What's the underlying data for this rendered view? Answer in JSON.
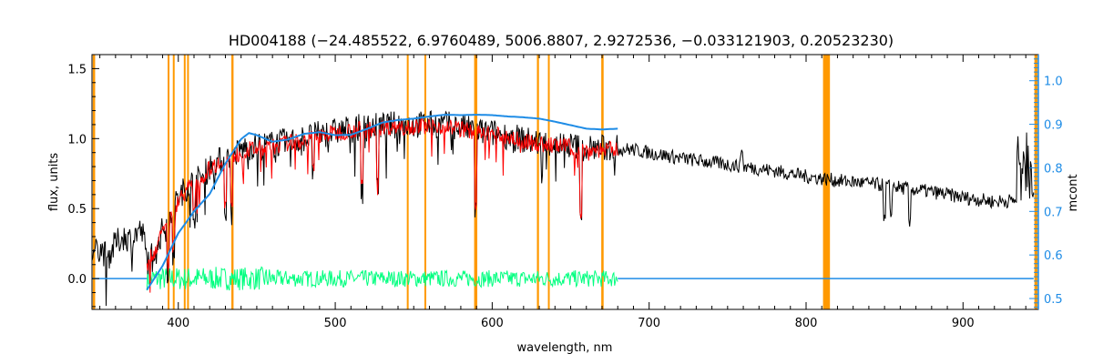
{
  "chart_data": {
    "type": "line",
    "title": "HD004188   (−24.485522, 6.9760489, 5006.8807, 2.9272536, −0.033121903, 0.20523230)",
    "xlabel": "wavelength, nm",
    "ylabel": "flux, units",
    "y2label": "mcont",
    "xlim": [
      345,
      948
    ],
    "ylim": [
      -0.22,
      1.6
    ],
    "y2lim": [
      0.475,
      1.06
    ],
    "xticks": [
      400,
      500,
      600,
      700,
      800,
      900
    ],
    "yticks": [
      0.0,
      0.5,
      1.0,
      1.5
    ],
    "yticklabels": [
      "0.0",
      "0.5",
      "1.0",
      "1.5"
    ],
    "y2ticks": [
      0.5,
      0.6,
      0.7,
      0.8,
      0.9,
      1.0
    ],
    "y2ticklabels": [
      "0.5",
      "0.6",
      "0.7",
      "0.8",
      "0.9",
      "1.0"
    ],
    "colors": {
      "observed": "#000000",
      "model": "#ff0000",
      "residual": "#00ff7f",
      "continuum": "#1e8ce6",
      "mask": "#ff9900",
      "right_axis": "#1e8ce6"
    },
    "masked_regions": [
      [
        345.5,
        347
      ],
      [
        393.2,
        393.8
      ],
      [
        396.5,
        397.2
      ],
      [
        403.5,
        404.2
      ],
      [
        405.6,
        406.3
      ],
      [
        433.8,
        435.2
      ],
      [
        545.6,
        546.3
      ],
      [
        556.8,
        557.5
      ],
      [
        588.5,
        590.5
      ],
      [
        628.5,
        629.8
      ],
      [
        635.5,
        636.3
      ],
      [
        669.5,
        671
      ],
      [
        810.8,
        815.2
      ],
      [
        945.5,
        947.5
      ]
    ],
    "series": [
      {
        "role": "observed",
        "x": [
          345,
          350,
          355,
          360,
          365,
          370,
          375,
          378,
          380,
          385,
          390,
          395,
          400,
          405,
          410,
          415,
          420,
          425,
          430,
          435,
          440,
          445,
          450,
          460,
          470,
          480,
          490,
          500,
          510,
          520,
          530,
          540,
          550,
          560,
          570,
          580,
          590,
          600,
          610,
          620,
          630,
          640,
          650,
          660,
          670,
          680,
          690,
          700,
          720,
          740,
          760,
          780,
          800,
          820,
          840,
          860,
          880,
          900,
          920,
          935,
          945
        ],
        "y": [
          0.17,
          0.22,
          0.15,
          0.25,
          0.3,
          0.28,
          0.35,
          0.3,
          0.12,
          0.22,
          0.35,
          0.45,
          0.58,
          0.65,
          0.7,
          0.72,
          0.8,
          0.84,
          0.85,
          0.88,
          0.92,
          0.94,
          0.95,
          0.96,
          0.98,
          1.0,
          1.03,
          1.05,
          1.07,
          1.08,
          1.09,
          1.1,
          1.1,
          1.1,
          1.1,
          1.08,
          1.05,
          1.04,
          1.02,
          0.99,
          0.97,
          0.96,
          0.95,
          0.93,
          0.93,
          0.93,
          0.92,
          0.9,
          0.86,
          0.83,
          0.8,
          0.77,
          0.73,
          0.7,
          0.68,
          0.65,
          0.62,
          0.58,
          0.55,
          0.56,
          0.55
        ]
      },
      {
        "role": "model",
        "x": [
          380,
          385,
          390,
          395,
          400,
          405,
          410,
          415,
          420,
          425,
          430,
          435,
          440,
          445,
          450,
          460,
          470,
          480,
          490,
          500,
          510,
          520,
          530,
          540,
          550,
          560,
          570,
          580,
          590,
          600,
          610,
          620,
          630,
          640,
          650,
          660,
          670,
          680
        ],
        "y": [
          0.1,
          0.2,
          0.33,
          0.44,
          0.56,
          0.63,
          0.68,
          0.71,
          0.79,
          0.82,
          0.84,
          0.87,
          0.9,
          0.92,
          0.93,
          0.94,
          0.97,
          0.99,
          1.02,
          1.04,
          1.06,
          1.07,
          1.08,
          1.09,
          1.09,
          1.09,
          1.09,
          1.07,
          1.04,
          1.03,
          1.01,
          0.98,
          0.96,
          0.95,
          0.94,
          0.92,
          0.92,
          0.92
        ]
      },
      {
        "role": "continuum",
        "axis": "right",
        "x": [
          380,
          390,
          400,
          410,
          420,
          430,
          440,
          445,
          450,
          460,
          470,
          480,
          490,
          500,
          510,
          520,
          530,
          540,
          550,
          560,
          570,
          580,
          590,
          600,
          610,
          620,
          630,
          640,
          650,
          660,
          670,
          680
        ],
        "y": [
          0.52,
          0.575,
          0.65,
          0.7,
          0.74,
          0.81,
          0.866,
          0.88,
          0.875,
          0.86,
          0.865,
          0.878,
          0.882,
          0.875,
          0.876,
          0.889,
          0.904,
          0.91,
          0.913,
          0.918,
          0.922,
          0.921,
          0.922,
          0.921,
          0.918,
          0.916,
          0.913,
          0.906,
          0.898,
          0.89,
          0.888,
          0.89
        ]
      }
    ],
    "residual": {
      "x_range": [
        380,
        680
      ],
      "center": 0.0,
      "amplitude": 0.06
    },
    "continuum_extension": {
      "x_range": [
        680,
        945
      ],
      "y_right": 0.52
    },
    "grid": false,
    "legend": "none"
  }
}
